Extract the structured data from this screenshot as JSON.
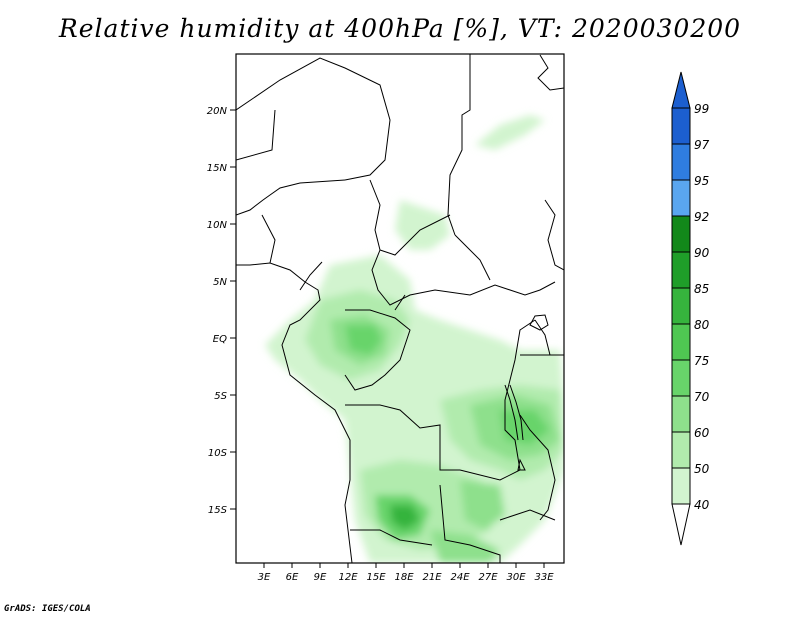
{
  "title": "Relative humidity at 400hPa [%], VT: 2020030200",
  "credit": "GrADS: IGES/COLA",
  "map": {
    "lat_labels": [
      "20N",
      "15N",
      "10N",
      "5N",
      "EQ",
      "5S",
      "10S",
      "15S"
    ],
    "lon_labels": [
      "3E",
      "6E",
      "9E",
      "12E",
      "15E",
      "18E",
      "21E",
      "24E",
      "27E",
      "30E",
      "33E"
    ]
  },
  "colorbar": {
    "labels": [
      "99",
      "97",
      "95",
      "92",
      "90",
      "85",
      "80",
      "75",
      "70",
      "60",
      "50",
      "40"
    ],
    "colors": [
      "#1c5fd0",
      "#2f7de0",
      "#5aa6ef",
      "#12881a",
      "#1f9e29",
      "#36b43d",
      "#4fc752",
      "#68d46a",
      "#8ee08c",
      "#b1ebad",
      "#d2f4cf",
      "#eefcec"
    ]
  }
}
